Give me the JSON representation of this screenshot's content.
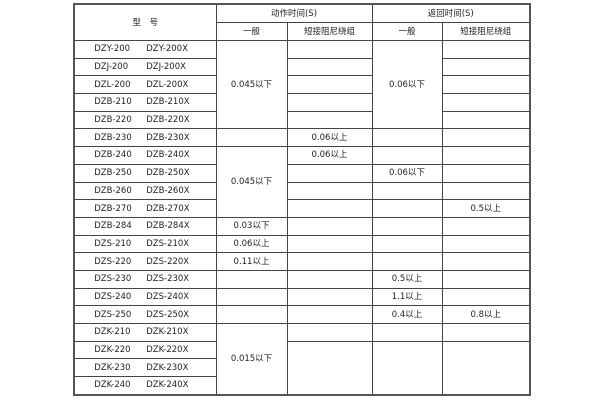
{
  "header": {
    "model": "型　号",
    "action_time": "动作时间(S)",
    "return_time": "返回时间(S)",
    "general": "一般",
    "short_damping": "短接阻尼绕组"
  },
  "rows": [
    {
      "model": [
        "DZY-200",
        "DZY-200X"
      ],
      "cells": [
        {
          "t": "0.045以下",
          "rs": 5
        },
        {
          "t": ""
        },
        {
          "t": "0.06以下",
          "rs": 5
        },
        {
          "t": ""
        }
      ]
    },
    {
      "model": [
        "DZJ-200",
        "DZJ-200X"
      ],
      "cells": [
        {
          "t": ""
        },
        {
          "t": ""
        }
      ]
    },
    {
      "model": [
        "DZL-200",
        "DZL-200X"
      ],
      "cells": [
        {
          "t": ""
        },
        {
          "t": ""
        }
      ]
    },
    {
      "model": [
        "DZB-210",
        "DZB-210X"
      ],
      "cells": [
        {
          "t": ""
        },
        {
          "t": ""
        }
      ]
    },
    {
      "model": [
        "DZB-220",
        "DZB-220X"
      ],
      "cells": [
        {
          "t": ""
        },
        {
          "t": ""
        }
      ]
    },
    {
      "model": [
        "DZB-230",
        "DZB-230X"
      ],
      "cells": [
        {
          "t": ""
        },
        {
          "t": "0.06以上"
        },
        {
          "t": ""
        },
        {
          "t": ""
        }
      ]
    },
    {
      "model": [
        "DZB-240",
        "DZB-240X"
      ],
      "cells": [
        {
          "t": "0.045以下",
          "rs": 4
        },
        {
          "t": "0.06以上"
        },
        {
          "t": ""
        },
        {
          "t": ""
        }
      ]
    },
    {
      "model": [
        "DZB-250",
        "DZB-250X"
      ],
      "cells": [
        {
          "t": ""
        },
        {
          "t": "0.06以下"
        },
        {
          "t": ""
        }
      ]
    },
    {
      "model": [
        "DZB-260",
        "DZB-260X"
      ],
      "cells": [
        {
          "t": ""
        },
        {
          "t": ""
        },
        {
          "t": ""
        }
      ]
    },
    {
      "model": [
        "DZB-270",
        "DZB-270X"
      ],
      "cells": [
        {
          "t": ""
        },
        {
          "t": ""
        },
        {
          "t": "0.5以上"
        }
      ]
    },
    {
      "model": [
        "DZB-284",
        "DZB-284X"
      ],
      "cells": [
        {
          "t": "0.03以下"
        },
        {
          "t": ""
        },
        {
          "t": ""
        },
        {
          "t": ""
        }
      ]
    },
    {
      "model": [
        "DZS-210",
        "DZS-210X"
      ],
      "cells": [
        {
          "t": "0.06以上"
        },
        {
          "t": ""
        },
        {
          "t": ""
        },
        {
          "t": ""
        }
      ]
    },
    {
      "model": [
        "DZS-220",
        "DZS-220X"
      ],
      "cells": [
        {
          "t": "0.11以上"
        },
        {
          "t": ""
        },
        {
          "t": ""
        },
        {
          "t": ""
        }
      ]
    },
    {
      "model": [
        "DZS-230",
        "DZS-230X"
      ],
      "cells": [
        {
          "t": ""
        },
        {
          "t": ""
        },
        {
          "t": "0.5以上"
        },
        {
          "t": ""
        }
      ]
    },
    {
      "model": [
        "DZS-240",
        "DZS-240X"
      ],
      "cells": [
        {
          "t": ""
        },
        {
          "t": ""
        },
        {
          "t": "1.1以上"
        },
        {
          "t": ""
        }
      ]
    },
    {
      "model": [
        "DZS-250",
        "DZS-250X"
      ],
      "cells": [
        {
          "t": ""
        },
        {
          "t": ""
        },
        {
          "t": "0.4以上"
        },
        {
          "t": "0.8以上"
        }
      ]
    },
    {
      "model": [
        "DZK-210",
        "DZK-210X"
      ],
      "cells": [
        {
          "t": "0.015以下",
          "rs": 4
        },
        {
          "t": ""
        },
        {
          "t": ""
        },
        {
          "t": ""
        }
      ]
    },
    {
      "model": [
        "DZK-220",
        "DZK-220X"
      ],
      "cells": [
        {
          "t": "",
          "rs": 3
        },
        {
          "t": "",
          "rs": 3
        },
        {
          "t": "",
          "rs": 3
        }
      ]
    },
    {
      "model": [
        "DZK-230",
        "DZK-230X"
      ],
      "cells": []
    },
    {
      "model": [
        "DZK-240",
        "DZK-240X"
      ],
      "cells": []
    }
  ]
}
